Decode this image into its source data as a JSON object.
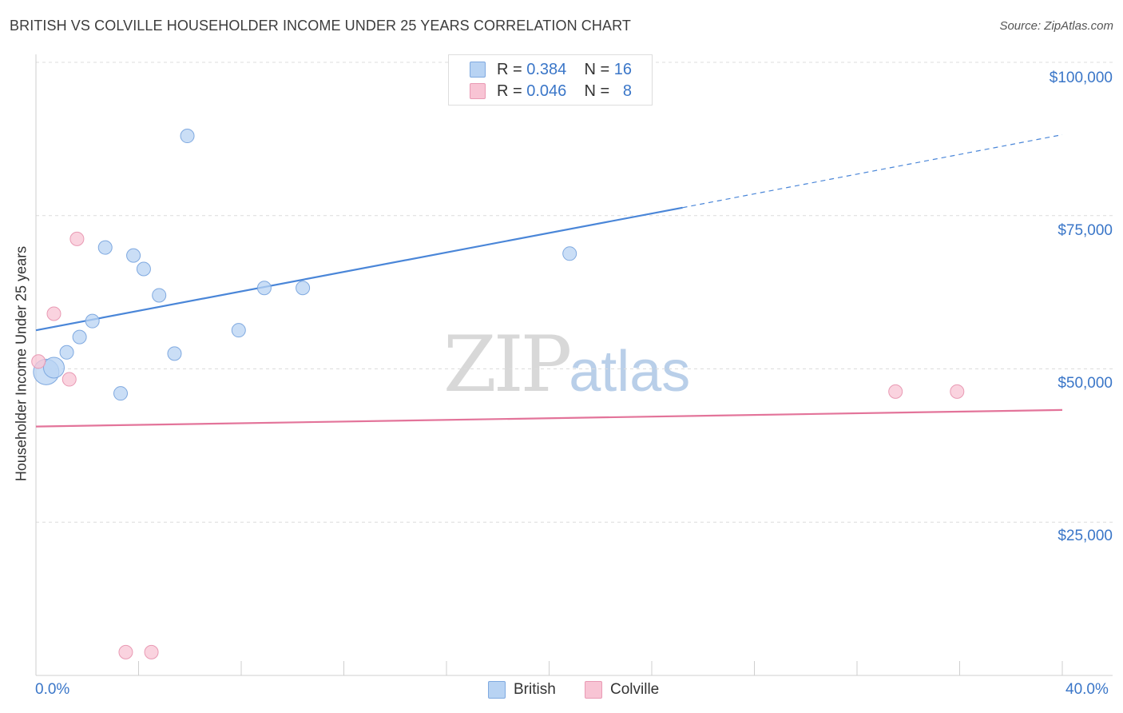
{
  "header": {
    "title": "BRITISH VS COLVILLE HOUSEHOLDER INCOME UNDER 25 YEARS CORRELATION CHART",
    "source": "Source: ZipAtlas.com"
  },
  "legend": {
    "british": {
      "r_label": "R =",
      "r_value": "0.384",
      "n_label": "N =",
      "n_value": "16"
    },
    "colville": {
      "r_label": "R =",
      "r_value": "0.046",
      "n_label": "N =",
      "n_value": "8"
    }
  },
  "watermark": {
    "zip": "ZIP",
    "atlas": "atlas"
  },
  "colors": {
    "british": "#4a86d8",
    "british_fill": "#b8d3f3",
    "colville": "#e3749a",
    "colville_fill": "#f8c4d4"
  },
  "chart_data": {
    "type": "scatter",
    "title": "BRITISH VS COLVILLE HOUSEHOLDER INCOME UNDER 25 YEARS CORRELATION CHART",
    "xlabel": "",
    "ylabel": "Householder Income Under 25 years",
    "xlim": [
      0,
      40
    ],
    "ylim": [
      0,
      102000
    ],
    "x_tick_labels": [
      "0.0%",
      "40.0%"
    ],
    "y_ticks": [
      {
        "value": 25000,
        "label": "$25,000"
      },
      {
        "value": 50000,
        "label": "$50,000"
      },
      {
        "value": 75000,
        "label": "$75,000"
      },
      {
        "value": 100000,
        "label": "$100,000"
      }
    ],
    "series": [
      {
        "name": "British",
        "color": "#4a86d8",
        "points": [
          {
            "x": 0.4,
            "y": 49500,
            "size": "large"
          },
          {
            "x": 0.7,
            "y": 50200,
            "size": "medium"
          },
          {
            "x": 1.2,
            "y": 52700
          },
          {
            "x": 1.7,
            "y": 55200
          },
          {
            "x": 2.2,
            "y": 57800
          },
          {
            "x": 2.7,
            "y": 69800
          },
          {
            "x": 3.3,
            "y": 46000
          },
          {
            "x": 3.8,
            "y": 68500
          },
          {
            "x": 4.2,
            "y": 66300
          },
          {
            "x": 4.8,
            "y": 62000
          },
          {
            "x": 5.4,
            "y": 52500
          },
          {
            "x": 5.9,
            "y": 88000
          },
          {
            "x": 7.9,
            "y": 56300
          },
          {
            "x": 8.9,
            "y": 63200
          },
          {
            "x": 10.4,
            "y": 63200
          },
          {
            "x": 20.8,
            "y": 68800
          }
        ],
        "trend": {
          "x0": 0,
          "y0": 56300,
          "x1": 25.2,
          "y1": 76300,
          "dashed_to_x": 40,
          "dashed_to_y": 88200
        }
      },
      {
        "name": "Colville",
        "color": "#e3749a",
        "points": [
          {
            "x": 0.1,
            "y": 51200
          },
          {
            "x": 1.3,
            "y": 48300
          },
          {
            "x": 0.7,
            "y": 59000
          },
          {
            "x": 1.6,
            "y": 71200
          },
          {
            "x": 3.5,
            "y": 3800
          },
          {
            "x": 4.5,
            "y": 3800
          },
          {
            "x": 33.5,
            "y": 46300
          },
          {
            "x": 35.9,
            "y": 46300
          }
        ],
        "trend": {
          "x0": 0,
          "y0": 40600,
          "x1": 40,
          "y1": 43300
        }
      }
    ]
  },
  "bottom_legend": [
    "British",
    "Colville"
  ]
}
